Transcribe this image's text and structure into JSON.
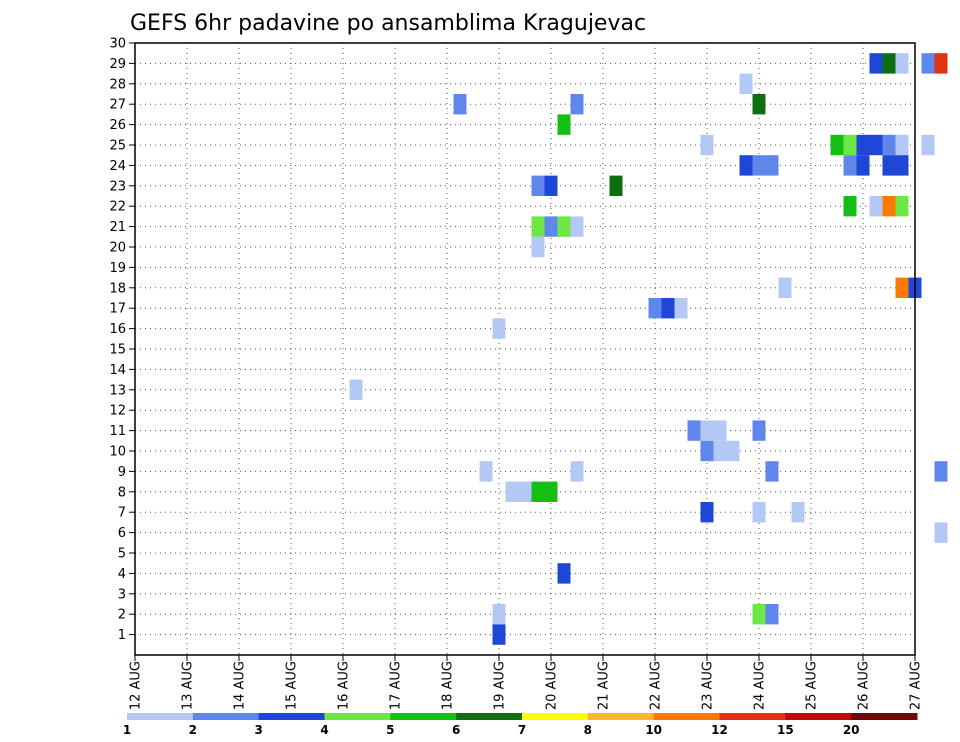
{
  "chart_data": {
    "type": "heatmap",
    "title": "GEFS 6hr padavine po ansamblima Kragujevac",
    "xlabel": "",
    "ylabel": "",
    "x_ticks": [
      "12 AUG",
      "13 AUG",
      "14 AUG",
      "15 AUG",
      "16 AUG",
      "17 AUG",
      "18 AUG",
      "19 AUG",
      "20 AUG",
      "21 AUG",
      "22 AUG",
      "23 AUG",
      "24 AUG",
      "25 AUG",
      "26 AUG",
      "27 AUG"
    ],
    "x_range_days": [
      0,
      15
    ],
    "y_ticks": [
      1,
      2,
      3,
      4,
      5,
      6,
      7,
      8,
      9,
      10,
      11,
      12,
      13,
      14,
      15,
      16,
      17,
      18,
      19,
      20,
      21,
      22,
      23,
      24,
      25,
      26,
      27,
      28,
      29,
      30
    ],
    "y_range": [
      0,
      30
    ],
    "grid": true,
    "legend": {
      "position": "bottom",
      "labels": [
        "1",
        "2",
        "3",
        "4",
        "5",
        "6",
        "7",
        "8",
        "10",
        "12",
        "15",
        "20"
      ],
      "colors": [
        "#b4c8f5",
        "#5f87eb",
        "#1e46d7",
        "#6ee646",
        "#14be14",
        "#0f6e0f",
        "#ffff00",
        "#ffb432",
        "#ff7800",
        "#e13214",
        "#be0a0a",
        "#6e0a0a"
      ]
    },
    "cells": [
      {
        "member": 29,
        "time": 14.25,
        "level": 3
      },
      {
        "member": 29,
        "time": 14.5,
        "level": 6
      },
      {
        "member": 29,
        "time": 14.75,
        "level": 1
      },
      {
        "member": 29,
        "time": 15.25,
        "level": 2
      },
      {
        "member": 29,
        "time": 15.5,
        "level": 10
      },
      {
        "member": 28,
        "time": 11.75,
        "level": 1
      },
      {
        "member": 27,
        "time": 6.25,
        "level": 2
      },
      {
        "member": 27,
        "time": 8.5,
        "level": 2
      },
      {
        "member": 27,
        "time": 12.0,
        "level": 6
      },
      {
        "member": 26,
        "time": 8.25,
        "level": 5
      },
      {
        "member": 25,
        "time": 11.0,
        "level": 1
      },
      {
        "member": 25,
        "time": 13.5,
        "level": 5
      },
      {
        "member": 25,
        "time": 13.75,
        "level": 4
      },
      {
        "member": 25,
        "time": 14.0,
        "level": 3
      },
      {
        "member": 25,
        "time": 14.25,
        "level": 3
      },
      {
        "member": 25,
        "time": 14.5,
        "level": 2
      },
      {
        "member": 25,
        "time": 14.75,
        "level": 1
      },
      {
        "member": 25,
        "time": 15.25,
        "level": 1
      },
      {
        "member": 24,
        "time": 11.75,
        "level": 3
      },
      {
        "member": 24,
        "time": 12.0,
        "level": 2
      },
      {
        "member": 24,
        "time": 12.25,
        "level": 2
      },
      {
        "member": 24,
        "time": 13.75,
        "level": 2
      },
      {
        "member": 24,
        "time": 14.0,
        "level": 3
      },
      {
        "member": 24,
        "time": 14.5,
        "level": 3
      },
      {
        "member": 24,
        "time": 14.75,
        "level": 3
      },
      {
        "member": 23,
        "time": 7.75,
        "level": 2
      },
      {
        "member": 23,
        "time": 8.0,
        "level": 3
      },
      {
        "member": 23,
        "time": 9.25,
        "level": 6
      },
      {
        "member": 22,
        "time": 13.75,
        "level": 5
      },
      {
        "member": 22,
        "time": 14.25,
        "level": 1
      },
      {
        "member": 22,
        "time": 14.5,
        "level": 9
      },
      {
        "member": 22,
        "time": 14.75,
        "level": 4
      },
      {
        "member": 21,
        "time": 7.75,
        "level": 4
      },
      {
        "member": 21,
        "time": 8.0,
        "level": 2
      },
      {
        "member": 21,
        "time": 8.25,
        "level": 4
      },
      {
        "member": 21,
        "time": 8.5,
        "level": 1
      },
      {
        "member": 20,
        "time": 7.75,
        "level": 1
      },
      {
        "member": 18,
        "time": 12.5,
        "level": 1
      },
      {
        "member": 18,
        "time": 14.75,
        "level": 9
      },
      {
        "member": 18,
        "time": 15.0,
        "level": 3
      },
      {
        "member": 17,
        "time": 10.0,
        "level": 2
      },
      {
        "member": 17,
        "time": 10.25,
        "level": 3
      },
      {
        "member": 17,
        "time": 10.5,
        "level": 1
      },
      {
        "member": 16,
        "time": 7.0,
        "level": 1
      },
      {
        "member": 13,
        "time": 4.25,
        "level": 1
      },
      {
        "member": 11,
        "time": 10.75,
        "level": 2
      },
      {
        "member": 11,
        "time": 11.0,
        "level": 1
      },
      {
        "member": 11,
        "time": 11.25,
        "level": 1
      },
      {
        "member": 11,
        "time": 12.0,
        "level": 2
      },
      {
        "member": 10,
        "time": 11.0,
        "level": 2
      },
      {
        "member": 10,
        "time": 11.25,
        "level": 1
      },
      {
        "member": 10,
        "time": 11.5,
        "level": 1
      },
      {
        "member": 9,
        "time": 6.75,
        "level": 1
      },
      {
        "member": 9,
        "time": 8.5,
        "level": 1
      },
      {
        "member": 9,
        "time": 12.25,
        "level": 2
      },
      {
        "member": 9,
        "time": 15.5,
        "level": 2
      },
      {
        "member": 8,
        "time": 7.25,
        "level": 1
      },
      {
        "member": 8,
        "time": 7.5,
        "level": 1
      },
      {
        "member": 8,
        "time": 7.75,
        "level": 5
      },
      {
        "member": 8,
        "time": 8.0,
        "level": 5
      },
      {
        "member": 7,
        "time": 11.0,
        "level": 3
      },
      {
        "member": 7,
        "time": 12.0,
        "level": 1
      },
      {
        "member": 7,
        "time": 12.75,
        "level": 1
      },
      {
        "member": 6,
        "time": 15.5,
        "level": 1
      },
      {
        "member": 4,
        "time": 8.25,
        "level": 3
      },
      {
        "member": 2,
        "time": 7.0,
        "level": 1
      },
      {
        "member": 2,
        "time": 12.0,
        "level": 4
      },
      {
        "member": 2,
        "time": 12.25,
        "level": 2
      },
      {
        "member": 1,
        "time": 7.0,
        "level": 3
      }
    ]
  }
}
